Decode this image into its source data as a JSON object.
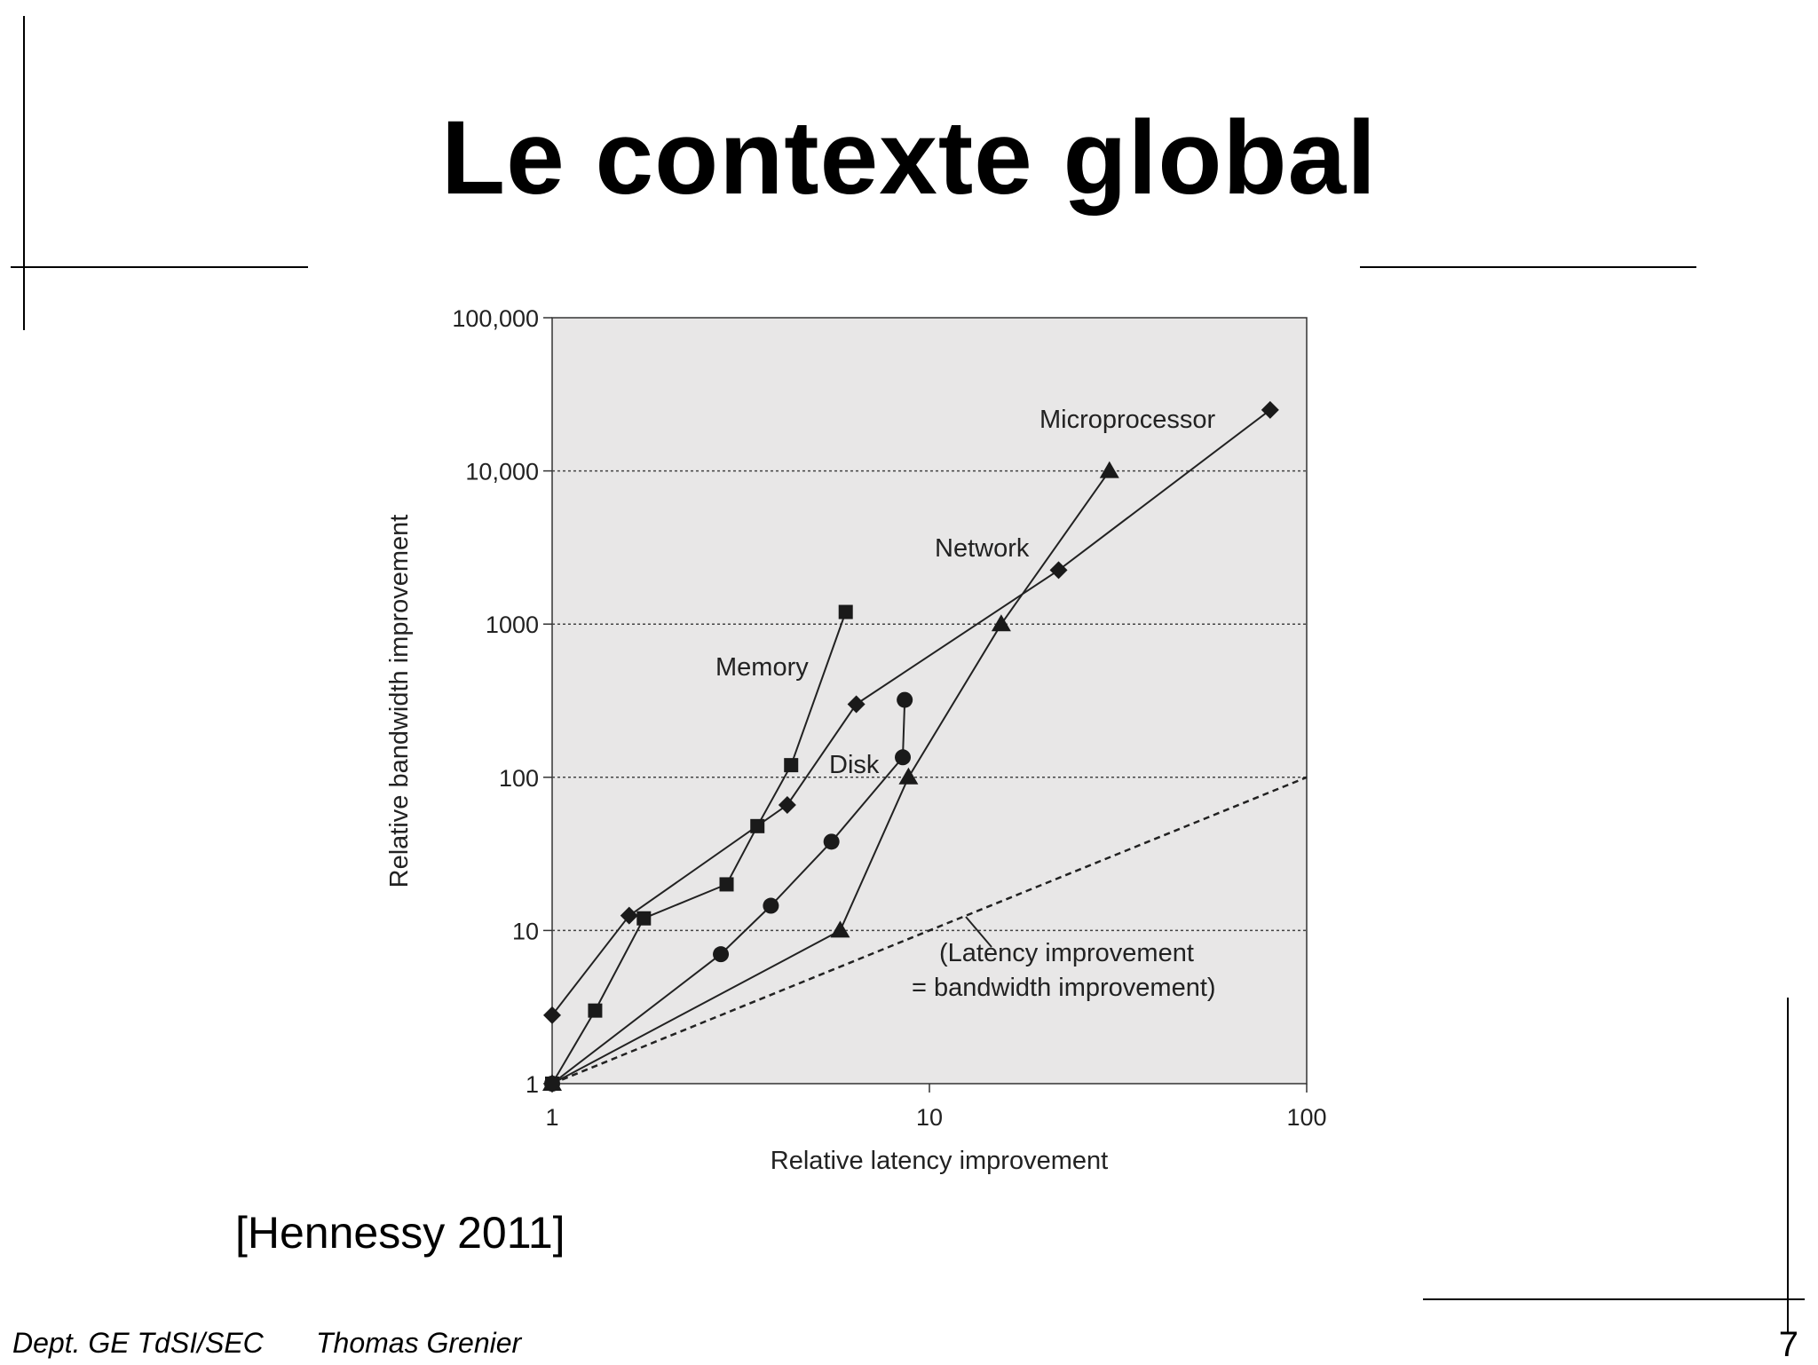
{
  "slide": {
    "title": "Le contexte global",
    "citation": "[Hennessy 2011]",
    "footer_dept": "Dept. GE TdSI/SEC",
    "footer_author": "Thomas Grenier",
    "page_number": "7"
  },
  "chart_data": {
    "type": "line",
    "title": "",
    "xlabel": "Relative latency improvement",
    "ylabel": "Relative bandwidth improvement",
    "xscale": "log",
    "yscale": "log",
    "xlim": [
      1,
      100
    ],
    "ylim": [
      1,
      100000
    ],
    "x_ticks": [
      1,
      10,
      100
    ],
    "x_tick_labels": [
      "1",
      "10",
      "100"
    ],
    "y_ticks": [
      1,
      10,
      100,
      1000,
      10000,
      100000
    ],
    "y_tick_labels": [
      "1",
      "10",
      "100",
      "1000",
      "10,000",
      "100,000"
    ],
    "grid": "horizontal dotted lines",
    "background": "#e8e7e7",
    "series": [
      {
        "name": "Microprocessor",
        "marker": "diamond",
        "points": [
          [
            1,
            2.8
          ],
          [
            1.6,
            12.5
          ],
          [
            4.2,
            66
          ],
          [
            6.4,
            300
          ],
          [
            22,
            2250
          ],
          [
            80,
            25000
          ]
        ]
      },
      {
        "name": "Memory",
        "marker": "square",
        "points": [
          [
            1,
            1
          ],
          [
            1.3,
            3
          ],
          [
            1.75,
            12
          ],
          [
            2.9,
            20
          ],
          [
            3.5,
            48
          ],
          [
            4.3,
            120
          ],
          [
            6,
            1200
          ]
        ]
      },
      {
        "name": "Network",
        "marker": "triangle",
        "points": [
          [
            1,
            1
          ],
          [
            5.8,
            10
          ],
          [
            8.8,
            100
          ],
          [
            15.5,
            1000
          ],
          [
            30,
            10000
          ]
        ]
      },
      {
        "name": "Disk",
        "marker": "circle",
        "points": [
          [
            1,
            1
          ],
          [
            2.8,
            7
          ],
          [
            3.8,
            14.5
          ],
          [
            5.5,
            38
          ],
          [
            8.5,
            135
          ],
          [
            8.6,
            320
          ]
        ]
      }
    ],
    "reference_line": {
      "label_line1": "(Latency improvement",
      "label_line2": "= bandwidth improvement)",
      "points": [
        [
          1,
          1
        ],
        [
          100,
          100
        ]
      ],
      "style": "dashed"
    }
  }
}
